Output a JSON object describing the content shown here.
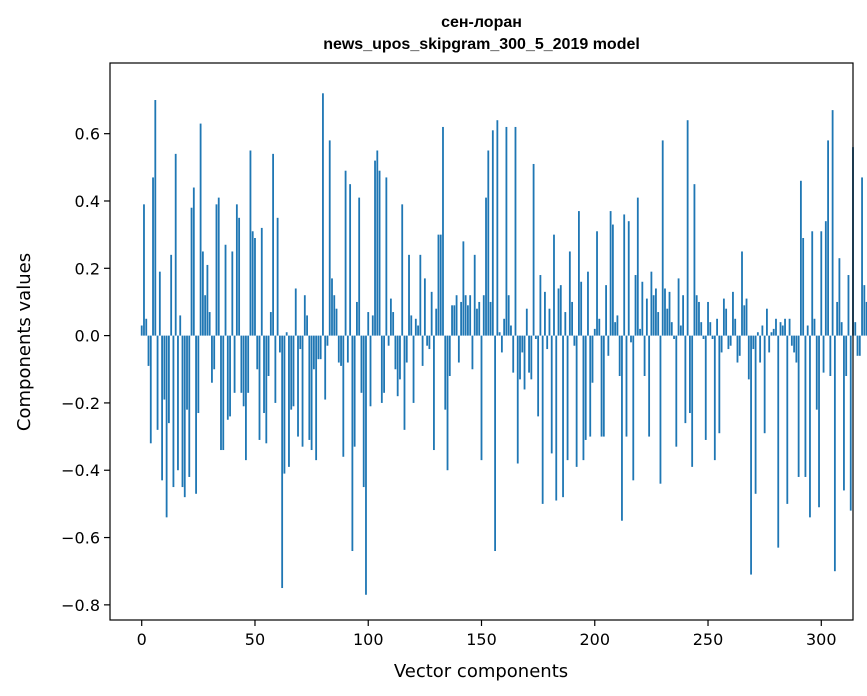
{
  "chart_data": {
    "type": "bar",
    "title_line1": "сен-лоран",
    "title_line2": "news_upos_skipgram_300_5_2019 model",
    "xlabel": "Vector components",
    "ylabel": "Components values",
    "xlim": [
      -14,
      314
    ],
    "ylim": [
      -0.845,
      0.81
    ],
    "x_ticks": [
      0,
      50,
      100,
      150,
      200,
      250,
      300
    ],
    "x_tick_labels": [
      "0",
      "50",
      "100",
      "150",
      "200",
      "250",
      "300"
    ],
    "y_ticks": [
      -0.8,
      -0.6,
      -0.4,
      -0.2,
      0.0,
      0.2,
      0.4,
      0.6
    ],
    "y_tick_labels": [
      "−0.8",
      "−0.6",
      "−0.4",
      "−0.2",
      "0.0",
      "0.2",
      "0.4",
      "0.6"
    ],
    "bar_color": "#1f77b4",
    "grid": false,
    "legend": "none",
    "values": [
      0.03,
      0.39,
      0.05,
      -0.09,
      -0.32,
      0.47,
      0.7,
      -0.28,
      0.19,
      -0.43,
      -0.19,
      -0.54,
      -0.26,
      0.24,
      -0.45,
      0.54,
      -0.4,
      0.06,
      -0.45,
      -0.48,
      -0.22,
      -0.42,
      0.38,
      0.44,
      -0.47,
      -0.23,
      0.63,
      0.25,
      0.12,
      0.21,
      0.07,
      -0.14,
      -0.1,
      0.39,
      0.41,
      -0.34,
      -0.34,
      0.27,
      -0.25,
      -0.24,
      0.25,
      -0.17,
      0.39,
      0.35,
      -0.17,
      -0.21,
      -0.37,
      -0.17,
      0.55,
      0.31,
      0.29,
      -0.1,
      -0.31,
      0.32,
      -0.23,
      -0.32,
      -0.12,
      0.07,
      0.54,
      -0.2,
      0.35,
      -0.05,
      -0.75,
      -0.41,
      0.01,
      -0.39,
      -0.22,
      -0.21,
      0.14,
      -0.3,
      -0.04,
      -0.33,
      0.12,
      0.06,
      -0.31,
      -0.34,
      -0.1,
      -0.37,
      -0.07,
      -0.07,
      0.72,
      -0.19,
      -0.03,
      0.58,
      0.17,
      0.12,
      0.08,
      -0.08,
      -0.09,
      -0.36,
      0.49,
      -0.08,
      0.45,
      -0.64,
      -0.33,
      0.1,
      0.41,
      -0.17,
      -0.45,
      -0.77,
      0.07,
      -0.21,
      0.06,
      0.52,
      0.55,
      0.49,
      -0.2,
      -0.17,
      0.47,
      -0.03,
      0.11,
      0.07,
      -0.1,
      -0.18,
      -0.13,
      0.39,
      -0.28,
      -0.08,
      0.24,
      0.06,
      -0.2,
      0.05,
      0.03,
      0.24,
      -0.09,
      0.17,
      -0.03,
      -0.04,
      0.13,
      -0.34,
      0.08,
      0.3,
      0.3,
      0.62,
      -0.22,
      -0.4,
      -0.12,
      0.09,
      0.09,
      0.12,
      -0.08,
      0.1,
      0.28,
      0.12,
      0.09,
      0.12,
      -0.1,
      0.24,
      0.08,
      0.1,
      -0.37,
      0.12,
      0.41,
      0.55,
      0.1,
      0.61,
      -0.64,
      0.64,
      0.01,
      -0.05,
      0.05,
      0.62,
      0.12,
      0.03,
      -0.11,
      0.62,
      -0.38,
      -0.13,
      -0.05,
      -0.16,
      0.08,
      -0.11,
      -0.13,
      0.51,
      -0.01,
      -0.24,
      0.18,
      -0.5,
      0.13,
      -0.04,
      0.08,
      -0.35,
      0.3,
      -0.49,
      0.14,
      0.15,
      -0.48,
      0.07,
      -0.37,
      0.25,
      0.1,
      -0.03,
      -0.39,
      0.37,
      0.16,
      -0.37,
      -0.31,
      0.19,
      -0.3,
      -0.14,
      0.02,
      0.31,
      0.05,
      -0.3,
      -0.3,
      0.15,
      -0.06,
      0.37,
      0.33,
      0.04,
      0.06,
      -0.12,
      -0.55,
      0.36,
      -0.3,
      0.34,
      -0.02,
      -0.43,
      0.18,
      0.41,
      0.02,
      0.16,
      -0.12,
      0.11,
      -0.3,
      0.19,
      0.12,
      0.14,
      0.07,
      -0.44,
      0.58,
      0.14,
      0.08,
      0.13,
      0.04,
      -0.01,
      -0.33,
      0.17,
      0.03,
      0.12,
      -0.26,
      0.64,
      -0.23,
      -0.39,
      0.45,
      0.12,
      0.1,
      0.04,
      -0.01,
      -0.31,
      0.1,
      0.04,
      -0.01,
      -0.37,
      0.05,
      -0.29,
      -0.05,
      0.11,
      0.08,
      -0.04,
      -0.03,
      0.13,
      0.05,
      -0.08,
      -0.06,
      0.25,
      0.09,
      0.11,
      -0.13,
      -0.71,
      -0.04,
      -0.47,
      0.01,
      -0.08,
      0.03,
      -0.29,
      0.08,
      -0.05,
      0.01,
      0.02,
      0.05,
      -0.63,
      0.04,
      0.03,
      0.05,
      -0.5,
      0.05,
      -0.03,
      -0.05,
      -0.08,
      -0.42,
      0.46,
      0.29,
      -0.42,
      0.03,
      -0.54,
      0.31,
      0.05,
      -0.22,
      -0.51,
      0.31,
      -0.11,
      0.34,
      0.58,
      -0.12,
      0.67,
      -0.7,
      0.1,
      0.23,
      0.04,
      -0.46,
      -0.12,
      0.18,
      -0.52,
      0.56,
      0.04,
      -0.06,
      -0.06,
      0.47,
      0.15,
      0.1
    ]
  }
}
